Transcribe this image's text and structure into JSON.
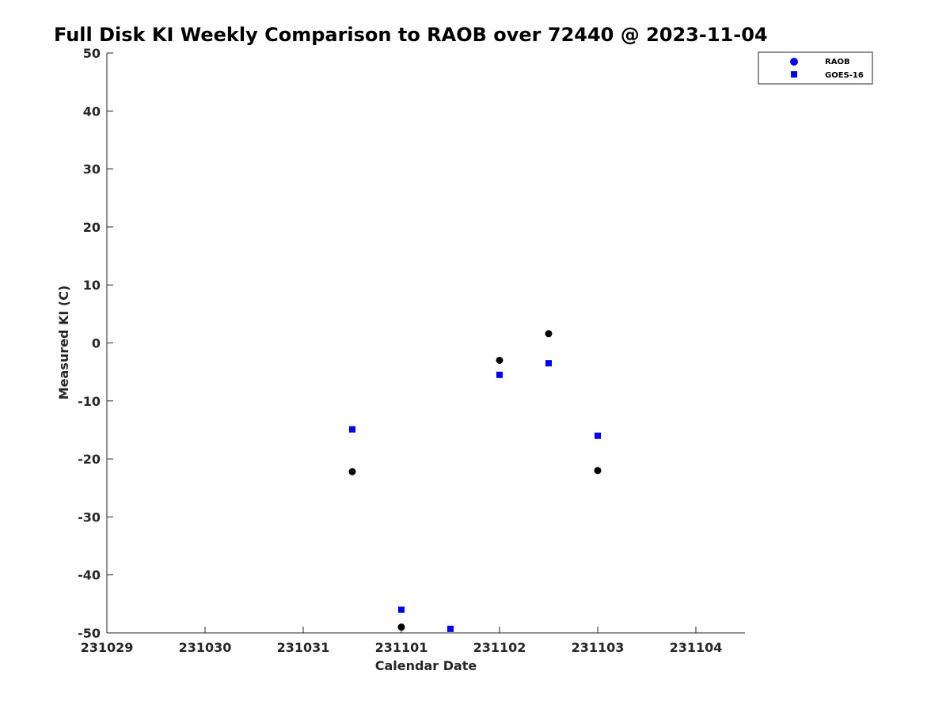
{
  "chart_data": {
    "type": "scatter",
    "title": "Full Disk KI Weekly Comparison to RAOB over 72440 @ 2023-11-04",
    "xlabel": "Calendar Date",
    "ylabel": "Measured KI (C)",
    "x_ticks": [
      "231029",
      "231030",
      "231031",
      "231101",
      "231102",
      "231103",
      "231104"
    ],
    "y_ticks": [
      50,
      40,
      30,
      20,
      10,
      0,
      -10,
      -20,
      -30,
      -40,
      -50
    ],
    "ylim": [
      -50,
      50
    ],
    "xlim_days": [
      0,
      6.5
    ],
    "grid": false,
    "legend_placement": "top-right",
    "series": [
      {
        "name": "RAOB",
        "marker": "circle",
        "color": "#000000",
        "legend_color": "#0000ff",
        "points": [
          {
            "x": "231031 12Z",
            "x_day": 2.5,
            "y": -22.2
          },
          {
            "x": "231101 00Z",
            "x_day": 3.0,
            "y": -49.0
          },
          {
            "x": "231102 00Z",
            "x_day": 4.0,
            "y": -3.0
          },
          {
            "x": "231102 12Z",
            "x_day": 4.5,
            "y": 1.6
          },
          {
            "x": "231103 00Z",
            "x_day": 5.0,
            "y": -22.0
          }
        ]
      },
      {
        "name": "GOES-16",
        "marker": "square",
        "color": "#0000ee",
        "legend_color": "#0000ee",
        "points": [
          {
            "x": "231031 12Z",
            "x_day": 2.5,
            "y": -14.9
          },
          {
            "x": "231101 00Z",
            "x_day": 3.0,
            "y": -46.0
          },
          {
            "x": "231101 12Z",
            "x_day": 3.5,
            "y": -49.3
          },
          {
            "x": "231102 00Z",
            "x_day": 4.0,
            "y": -5.5
          },
          {
            "x": "231102 12Z",
            "x_day": 4.5,
            "y": -3.5
          },
          {
            "x": "231103 00Z",
            "x_day": 5.0,
            "y": -16.0
          }
        ]
      }
    ]
  }
}
